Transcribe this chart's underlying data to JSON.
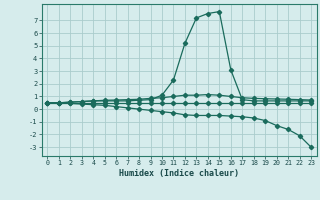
{
  "xlabel": "Humidex (Indice chaleur)",
  "ylabel": "",
  "xlim": [
    -0.5,
    23.5
  ],
  "ylim": [
    -3.7,
    8.3
  ],
  "xticks": [
    0,
    1,
    2,
    3,
    4,
    5,
    6,
    7,
    8,
    9,
    10,
    11,
    12,
    13,
    14,
    15,
    16,
    17,
    18,
    19,
    20,
    21,
    22,
    23
  ],
  "yticks": [
    -3,
    -2,
    -1,
    0,
    1,
    2,
    3,
    4,
    5,
    6,
    7
  ],
  "background_color": "#d6ecec",
  "grid_color": "#aacccc",
  "line_color": "#1a6b5c",
  "lines": [
    {
      "x": [
        0,
        1,
        2,
        3,
        4,
        5,
        6,
        7,
        8,
        9,
        10,
        11,
        12,
        13,
        14,
        15,
        16,
        17,
        18,
        19,
        20,
        21,
        22,
        23
      ],
      "y": [
        0.5,
        0.5,
        0.55,
        0.6,
        0.65,
        0.65,
        0.65,
        0.65,
        0.7,
        0.75,
        1.1,
        2.3,
        5.2,
        7.2,
        7.55,
        7.7,
        3.1,
        0.75,
        0.65,
        0.65,
        0.65,
        0.65,
        0.65,
        0.65
      ]
    },
    {
      "x": [
        0,
        1,
        2,
        3,
        4,
        5,
        6,
        7,
        8,
        9,
        10,
        11,
        12,
        13,
        14,
        15,
        16,
        17,
        18,
        19,
        20,
        21,
        22,
        23
      ],
      "y": [
        0.5,
        0.5,
        0.5,
        0.5,
        0.5,
        0.5,
        0.5,
        0.5,
        0.5,
        0.5,
        0.5,
        0.5,
        0.5,
        0.5,
        0.5,
        0.5,
        0.5,
        0.5,
        0.5,
        0.5,
        0.5,
        0.5,
        0.5,
        0.5
      ]
    },
    {
      "x": [
        0,
        1,
        2,
        3,
        4,
        5,
        6,
        7,
        8,
        9,
        10,
        11,
        12,
        13,
        14,
        15,
        16,
        17,
        18,
        19,
        20,
        21,
        22,
        23
      ],
      "y": [
        0.5,
        0.5,
        0.55,
        0.6,
        0.65,
        0.7,
        0.72,
        0.75,
        0.78,
        0.85,
        0.9,
        1.0,
        1.1,
        1.1,
        1.15,
        1.1,
        1.0,
        0.9,
        0.85,
        0.82,
        0.8,
        0.78,
        0.75,
        0.72
      ]
    },
    {
      "x": [
        0,
        1,
        2,
        3,
        4,
        5,
        6,
        7,
        8,
        9,
        10,
        11,
        12,
        13,
        14,
        15,
        16,
        17,
        18,
        19,
        20,
        21,
        22,
        23
      ],
      "y": [
        0.5,
        0.5,
        0.45,
        0.4,
        0.35,
        0.3,
        0.2,
        0.1,
        0.0,
        -0.1,
        -0.2,
        -0.3,
        -0.45,
        -0.5,
        -0.5,
        -0.5,
        -0.55,
        -0.6,
        -0.7,
        -0.9,
        -1.3,
        -1.6,
        -2.1,
        -3.0
      ]
    }
  ],
  "marker": "D",
  "markersize": 2.2,
  "linewidth": 0.9
}
